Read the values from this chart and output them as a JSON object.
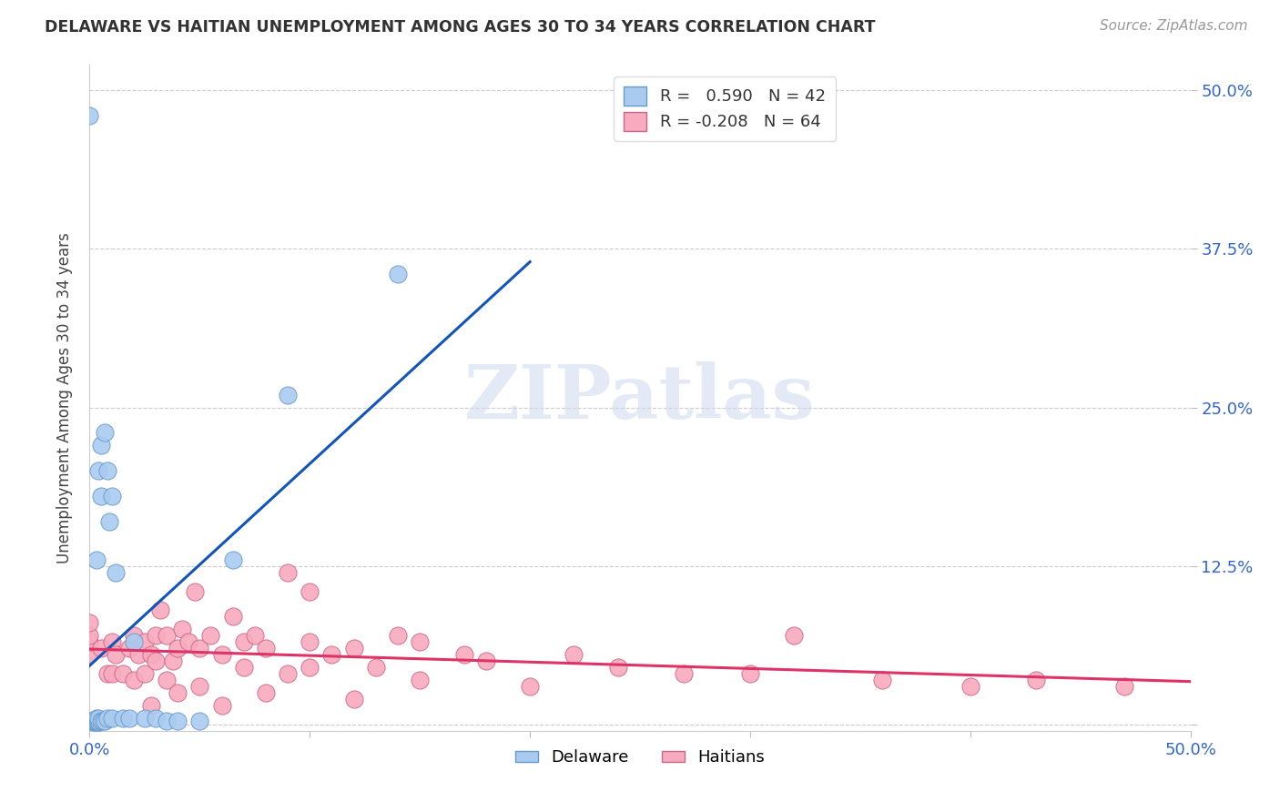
{
  "title": "DELAWARE VS HAITIAN UNEMPLOYMENT AMONG AGES 30 TO 34 YEARS CORRELATION CHART",
  "source": "Source: ZipAtlas.com",
  "ylabel": "Unemployment Among Ages 30 to 34 years",
  "xlim": [
    0.0,
    0.5
  ],
  "ylim": [
    -0.005,
    0.52
  ],
  "xticks": [
    0.0,
    0.1,
    0.2,
    0.3,
    0.4,
    0.5
  ],
  "xticklabels": [
    "0.0%",
    "",
    "",
    "",
    "",
    "50.0%"
  ],
  "yticks": [
    0.0,
    0.125,
    0.25,
    0.375,
    0.5
  ],
  "yticklabels_right": [
    "",
    "12.5%",
    "25.0%",
    "37.5%",
    "50.0%"
  ],
  "grid_color": "#cccccc",
  "background_color": "#ffffff",
  "delaware_color": "#aacbf0",
  "haitian_color": "#f8aabe",
  "delaware_edge_color": "#6699cc",
  "haitian_edge_color": "#cc6688",
  "delaware_line_color": "#1155bb",
  "haitian_line_color": "#dd3366",
  "tick_color": "#3366cc",
  "delaware_R": "0.590",
  "delaware_N": "42",
  "haitian_R": "-0.208",
  "haitian_N": "64",
  "watermark": "ZIPatlas",
  "delaware_x": [
    0.0,
    0.0,
    0.0,
    0.0,
    0.0,
    0.0,
    0.0,
    0.0,
    0.002,
    0.002,
    0.002,
    0.003,
    0.003,
    0.003,
    0.003,
    0.004,
    0.004,
    0.004,
    0.004,
    0.005,
    0.005,
    0.005,
    0.006,
    0.007,
    0.007,
    0.008,
    0.008,
    0.009,
    0.01,
    0.01,
    0.012,
    0.015,
    0.018,
    0.02,
    0.025,
    0.03,
    0.035,
    0.04,
    0.05,
    0.065,
    0.09,
    0.14
  ],
  "delaware_y": [
    0.0,
    0.0,
    0.0,
    0.0,
    0.002,
    0.002,
    0.003,
    0.48,
    0.0,
    0.002,
    0.003,
    0.002,
    0.003,
    0.005,
    0.13,
    0.002,
    0.003,
    0.005,
    0.2,
    0.003,
    0.18,
    0.22,
    0.003,
    0.003,
    0.23,
    0.005,
    0.2,
    0.16,
    0.005,
    0.18,
    0.12,
    0.005,
    0.005,
    0.065,
    0.005,
    0.005,
    0.003,
    0.003,
    0.003,
    0.13,
    0.26,
    0.355
  ],
  "haitian_x": [
    0.0,
    0.0,
    0.0,
    0.0,
    0.005,
    0.008,
    0.01,
    0.01,
    0.012,
    0.015,
    0.018,
    0.02,
    0.02,
    0.022,
    0.025,
    0.025,
    0.028,
    0.028,
    0.03,
    0.03,
    0.032,
    0.035,
    0.035,
    0.038,
    0.04,
    0.04,
    0.042,
    0.045,
    0.048,
    0.05,
    0.05,
    0.055,
    0.06,
    0.06,
    0.065,
    0.07,
    0.07,
    0.075,
    0.08,
    0.08,
    0.09,
    0.09,
    0.1,
    0.1,
    0.1,
    0.11,
    0.12,
    0.12,
    0.13,
    0.14,
    0.15,
    0.15,
    0.17,
    0.18,
    0.2,
    0.22,
    0.24,
    0.27,
    0.3,
    0.32,
    0.36,
    0.4,
    0.43,
    0.47
  ],
  "haitian_y": [
    0.055,
    0.065,
    0.07,
    0.08,
    0.06,
    0.04,
    0.04,
    0.065,
    0.055,
    0.04,
    0.06,
    0.035,
    0.07,
    0.055,
    0.04,
    0.065,
    0.015,
    0.055,
    0.05,
    0.07,
    0.09,
    0.035,
    0.07,
    0.05,
    0.025,
    0.06,
    0.075,
    0.065,
    0.105,
    0.03,
    0.06,
    0.07,
    0.015,
    0.055,
    0.085,
    0.045,
    0.065,
    0.07,
    0.025,
    0.06,
    0.04,
    0.12,
    0.045,
    0.065,
    0.105,
    0.055,
    0.02,
    0.06,
    0.045,
    0.07,
    0.035,
    0.065,
    0.055,
    0.05,
    0.03,
    0.055,
    0.045,
    0.04,
    0.04,
    0.07,
    0.035,
    0.03,
    0.035,
    0.03
  ]
}
